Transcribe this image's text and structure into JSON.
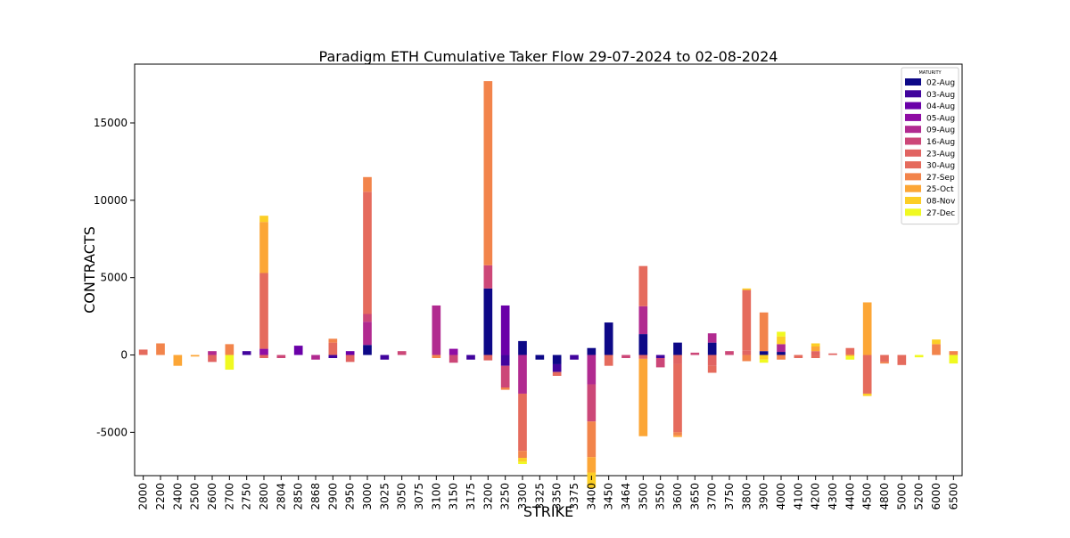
{
  "chart_data": {
    "type": "bar",
    "stacked": true,
    "title": "Paradigm ETH Cumulative Taker Flow 29-07-2024 to 02-08-2024",
    "xlabel": "STRIKE",
    "ylabel": "CONTRACTS",
    "ylim": [
      -7800,
      18800
    ],
    "yticks": [
      -5000,
      0,
      5000,
      10000,
      15000
    ],
    "grid": false,
    "legend_title": "MATURITY",
    "legend_position": "top-right",
    "categories": [
      "2000",
      "2200",
      "2400",
      "2500",
      "2600",
      "2700",
      "2750",
      "2800",
      "2804",
      "2850",
      "2868",
      "2900",
      "2950",
      "3000",
      "3025",
      "3050",
      "3075",
      "3100",
      "3150",
      "3175",
      "3200",
      "3250",
      "3300",
      "3325",
      "3350",
      "3375",
      "3400",
      "3450",
      "3464",
      "3500",
      "3550",
      "3600",
      "3650",
      "3700",
      "3750",
      "3800",
      "3900",
      "4000",
      "4100",
      "4200",
      "4300",
      "4400",
      "4500",
      "4800",
      "5000",
      "5200",
      "6000",
      "6500"
    ],
    "series": [
      {
        "name": "02-Aug",
        "color": "#0d0887",
        "values": [
          0,
          0,
          0,
          0,
          0,
          0,
          0,
          0,
          0,
          0,
          0,
          0,
          0,
          650,
          0,
          0,
          0,
          0,
          0,
          0,
          4300,
          0,
          900,
          -300,
          -600,
          0,
          450,
          2100,
          0,
          1350,
          0,
          800,
          0,
          800,
          0,
          0,
          250,
          200,
          0,
          0,
          0,
          0,
          0,
          0,
          0,
          0,
          0,
          0
        ]
      },
      {
        "name": "03-Aug",
        "color": "#41049d",
        "values": [
          0,
          0,
          0,
          0,
          0,
          0,
          250,
          0,
          0,
          0,
          0,
          -200,
          0,
          0,
          -300,
          0,
          0,
          0,
          0,
          -300,
          0,
          -700,
          0,
          0,
          -500,
          -300,
          0,
          0,
          0,
          0,
          -200,
          0,
          0,
          0,
          0,
          0,
          0,
          0,
          0,
          0,
          0,
          0,
          0,
          0,
          0,
          0,
          0,
          0
        ]
      },
      {
        "name": "04-Aug",
        "color": "#6a00a8",
        "values": [
          0,
          0,
          0,
          0,
          0,
          0,
          0,
          0,
          0,
          600,
          0,
          0,
          250,
          0,
          0,
          0,
          0,
          0,
          0,
          0,
          0,
          3200,
          0,
          0,
          0,
          0,
          0,
          0,
          0,
          0,
          0,
          0,
          0,
          0,
          0,
          0,
          0,
          0,
          0,
          0,
          0,
          0,
          0,
          0,
          0,
          0,
          0,
          0
        ]
      },
      {
        "name": "05-Aug",
        "color": "#8f0da4",
        "values": [
          0,
          0,
          0,
          0,
          0,
          0,
          0,
          400,
          0,
          0,
          0,
          0,
          0,
          0,
          0,
          0,
          0,
          0,
          400,
          0,
          0,
          0,
          0,
          0,
          0,
          0,
          0,
          0,
          0,
          0,
          0,
          0,
          0,
          0,
          0,
          0,
          0,
          0,
          0,
          0,
          0,
          0,
          0,
          0,
          0,
          0,
          0,
          0
        ]
      },
      {
        "name": "09-Aug",
        "color": "#b12a90",
        "values": [
          0,
          0,
          0,
          0,
          250,
          0,
          0,
          0,
          0,
          0,
          -300,
          0,
          0,
          1500,
          0,
          0,
          0,
          3200,
          0,
          0,
          0,
          0,
          -2500,
          0,
          0,
          0,
          -1900,
          0,
          0,
          1800,
          0,
          0,
          0,
          600,
          0,
          0,
          0,
          500,
          0,
          0,
          0,
          0,
          0,
          0,
          0,
          0,
          0,
          0
        ]
      },
      {
        "name": "16-Aug",
        "color": "#cc4778",
        "values": [
          0,
          0,
          0,
          0,
          0,
          0,
          0,
          0,
          -200,
          0,
          0,
          0,
          0,
          500,
          0,
          250,
          0,
          0,
          -500,
          0,
          1500,
          -1400,
          0,
          0,
          0,
          0,
          -2400,
          0,
          -200,
          0,
          -600,
          0,
          150,
          0,
          250,
          0,
          0,
          0,
          0,
          0,
          0,
          0,
          0,
          0,
          0,
          0,
          0,
          0
        ]
      },
      {
        "name": "23-Aug",
        "color": "#e16462",
        "values": [
          0,
          0,
          0,
          0,
          -450,
          0,
          0,
          -200,
          0,
          0,
          0,
          0,
          -450,
          0,
          0,
          0,
          0,
          0,
          0,
          0,
          -350,
          0,
          0,
          0,
          0,
          0,
          0,
          0,
          0,
          -250,
          0,
          -600,
          0,
          -700,
          0,
          300,
          0,
          0,
          0,
          250,
          100,
          0,
          0,
          0,
          0,
          0,
          0,
          0
        ]
      },
      {
        "name": "30-Aug",
        "color": "#e56b5d",
        "values": [
          350,
          0,
          0,
          0,
          0,
          0,
          0,
          4900,
          0,
          0,
          0,
          800,
          0,
          7900,
          0,
          0,
          0,
          0,
          0,
          0,
          0,
          0,
          -3700,
          0,
          -250,
          0,
          0,
          -700,
          0,
          2600,
          0,
          -4400,
          0,
          -450,
          0,
          3900,
          0,
          0,
          -200,
          -200,
          0,
          450,
          -2500,
          -450,
          -650,
          0,
          0,
          0
        ]
      },
      {
        "name": "27-Sep",
        "color": "#f2844b",
        "values": [
          0,
          750,
          0,
          0,
          0,
          700,
          0,
          0,
          0,
          0,
          0,
          250,
          0,
          950,
          0,
          0,
          0,
          -200,
          0,
          0,
          11900,
          -150,
          -450,
          0,
          0,
          0,
          -2300,
          0,
          0,
          0,
          0,
          -200,
          0,
          0,
          0,
          -400,
          2500,
          -300,
          0,
          0,
          0,
          0,
          0,
          -100,
          0,
          0,
          700,
          250
        ]
      },
      {
        "name": "25-Oct",
        "color": "#fca636",
        "values": [
          0,
          0,
          -700,
          -100,
          0,
          0,
          0,
          3300,
          0,
          0,
          0,
          0,
          0,
          0,
          0,
          0,
          0,
          0,
          0,
          0,
          0,
          0,
          0,
          0,
          0,
          0,
          -1000,
          0,
          0,
          -5000,
          0,
          -100,
          0,
          0,
          0,
          0,
          0,
          0,
          0,
          300,
          0,
          0,
          3400,
          0,
          0,
          0,
          0,
          0
        ]
      },
      {
        "name": "08-Nov",
        "color": "#fcce25",
        "values": [
          0,
          0,
          0,
          0,
          0,
          0,
          0,
          400,
          0,
          0,
          0,
          0,
          0,
          0,
          0,
          0,
          0,
          0,
          0,
          0,
          0,
          0,
          -250,
          0,
          0,
          0,
          -1000,
          0,
          0,
          0,
          0,
          0,
          0,
          0,
          0,
          100,
          -300,
          500,
          0,
          200,
          0,
          -100,
          -150,
          0,
          0,
          0,
          300,
          0
        ]
      },
      {
        "name": "27-Dec",
        "color": "#f0f921",
        "values": [
          0,
          0,
          0,
          0,
          0,
          -950,
          0,
          0,
          0,
          0,
          0,
          0,
          0,
          0,
          0,
          0,
          0,
          0,
          0,
          0,
          0,
          0,
          -150,
          0,
          0,
          0,
          0,
          0,
          0,
          0,
          0,
          0,
          0,
          0,
          0,
          0,
          -200,
          300,
          0,
          0,
          0,
          -200,
          0,
          0,
          0,
          -150,
          0,
          -550
        ]
      }
    ]
  }
}
